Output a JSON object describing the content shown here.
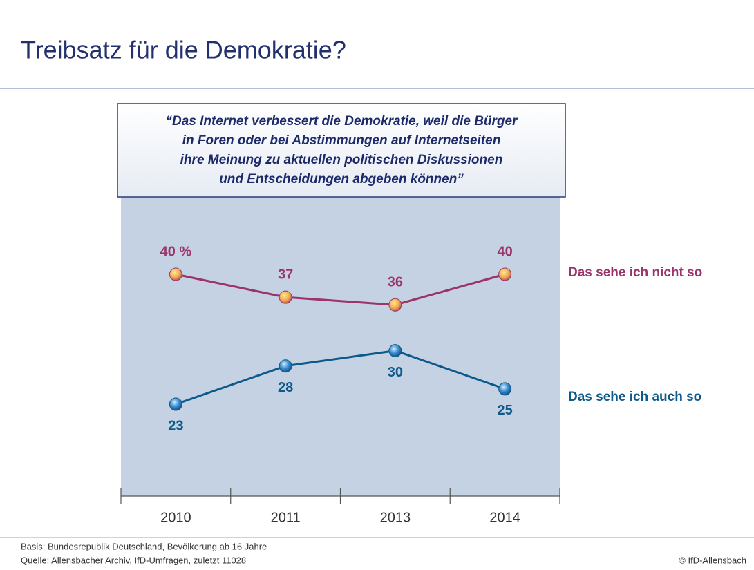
{
  "chart_data": {
    "type": "line",
    "title": "Treibsatz für die Demokratie?",
    "subtitle": [
      "“Das Internet verbessert die Demokratie, weil die Bürger",
      "in Foren oder bei Abstimmungen auf Internetseiten",
      "ihre Meinung zu aktuellen politischen Diskussionen",
      "und Entscheidungen abgeben können”"
    ],
    "categories": [
      "2010",
      "2011",
      "2013",
      "2014"
    ],
    "series": [
      {
        "name": "Das sehe ich nicht so",
        "color": "#9b3468",
        "values": [
          40,
          37,
          36,
          40
        ],
        "value_labels": [
          "40 %",
          "37",
          "36",
          "40"
        ]
      },
      {
        "name": "Das sehe ich auch so",
        "color": "#0d5a8a",
        "values": [
          23,
          28,
          30,
          25
        ]
      }
    ],
    "notes": [
      "Basis: Bundesrepublik Deutschland, Bevölkerung ab 16 Jahre",
      "Quelle: Allensbacher Archiv, IfD-Umfragen, zuletzt 11028"
    ],
    "copyright": "© IfD-Allensbach"
  }
}
